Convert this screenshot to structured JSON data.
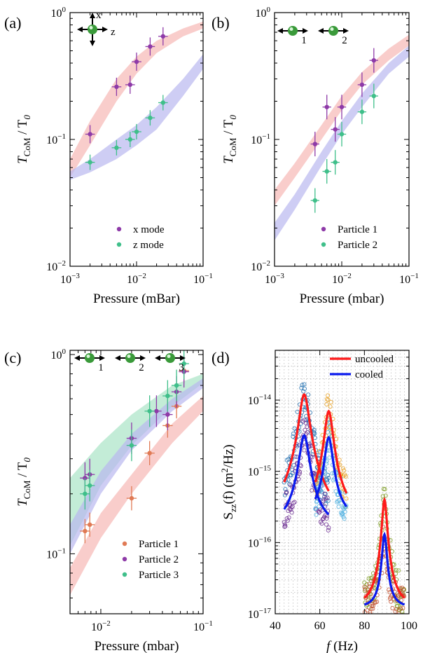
{
  "colors": {
    "purple": "#8e3aa8",
    "green": "#3fbf8a",
    "orange": "#e07a55",
    "band_red": "#f6b8b5",
    "band_blue": "#b9b8f0",
    "band_green": "#a9e4c6",
    "red_line": "#ff1a1a",
    "blue_line": "#0a1aee",
    "ball": "#3a9a3a"
  },
  "chart_data": [
    {
      "panel": "(a)",
      "type": "scatter",
      "xlabel": "Pressure (mBar)",
      "ylabel_main": "T",
      "ylabel_sub": "CoM",
      "ylabel_tail": " / T",
      "ylabel_sub2": "0",
      "xscale": "log",
      "yscale": "log",
      "xlim": [
        0.001,
        0.1
      ],
      "ylim": [
        0.01,
        1
      ],
      "xticks": [
        {
          "v": 0.001,
          "b": "10",
          "e": "−3"
        },
        {
          "v": 0.01,
          "b": "10",
          "e": "−2"
        },
        {
          "v": 0.1,
          "b": "10",
          "e": "−1"
        }
      ],
      "yticks": [
        {
          "v": 0.01,
          "b": "10",
          "e": "−2"
        },
        {
          "v": 0.1,
          "b": "10",
          "e": "−1"
        },
        {
          "v": 1,
          "b": "10",
          "e": "0"
        }
      ],
      "inset_labels": [
        "x",
        "z"
      ],
      "legend": [
        "x mode",
        "z mode"
      ],
      "series": [
        {
          "name": "x mode",
          "color": "purple",
          "x": [
            0.002,
            0.005,
            0.008,
            0.01,
            0.016,
            0.025
          ],
          "y": [
            0.11,
            0.26,
            0.27,
            0.41,
            0.54,
            0.65
          ],
          "xerr": 0.18,
          "yerr": 0.18
        },
        {
          "name": "z mode",
          "color": "green",
          "x": [
            0.002,
            0.005,
            0.008,
            0.01,
            0.016,
            0.025
          ],
          "y": [
            0.066,
            0.086,
            0.1,
            0.115,
            0.148,
            0.195
          ],
          "xerr": 0.18,
          "yerr": 0.15
        }
      ],
      "bands": [
        {
          "color": "band_red",
          "x": [
            0.001,
            0.002,
            0.005,
            0.01,
            0.02,
            0.05,
            0.1
          ],
          "lo": [
            0.05,
            0.09,
            0.2,
            0.33,
            0.48,
            0.65,
            0.75
          ],
          "hi": [
            0.07,
            0.14,
            0.3,
            0.45,
            0.6,
            0.75,
            0.85
          ]
        },
        {
          "color": "band_blue",
          "x": [
            0.001,
            0.002,
            0.005,
            0.01,
            0.02,
            0.05,
            0.1
          ],
          "lo": [
            0.048,
            0.055,
            0.07,
            0.09,
            0.12,
            0.22,
            0.36
          ],
          "hi": [
            0.056,
            0.07,
            0.1,
            0.13,
            0.18,
            0.3,
            0.47
          ]
        }
      ]
    },
    {
      "panel": "(b)",
      "type": "scatter",
      "xlabel": "Pressure (mbar)",
      "ylabel_main": "T",
      "ylabel_sub": "CoM",
      "ylabel_tail": " / T",
      "ylabel_sub2": "0",
      "xscale": "log",
      "yscale": "log",
      "xlim": [
        0.001,
        0.1
      ],
      "ylim": [
        0.01,
        1
      ],
      "xticks": [
        {
          "v": 0.001,
          "b": "10",
          "e": "−3"
        },
        {
          "v": 0.01,
          "b": "10",
          "e": "−2"
        },
        {
          "v": 0.1,
          "b": "10",
          "e": "−1"
        }
      ],
      "yticks": [
        {
          "v": 0.01,
          "b": "10",
          "e": "−2"
        },
        {
          "v": 0.1,
          "b": "10",
          "e": "−1"
        },
        {
          "v": 1,
          "b": "10",
          "e": "0"
        }
      ],
      "inset_labels": [
        "1",
        "2"
      ],
      "legend": [
        "Particle 1",
        "Particle 2"
      ],
      "series": [
        {
          "name": "Particle 1",
          "color": "purple",
          "x": [
            0.004,
            0.006,
            0.008,
            0.01,
            0.02,
            0.03
          ],
          "y": [
            0.092,
            0.18,
            0.12,
            0.18,
            0.27,
            0.42
          ],
          "xerr": 0.16,
          "yerr": 0.25
        },
        {
          "name": "Particle 2",
          "color": "green",
          "x": [
            0.004,
            0.006,
            0.008,
            0.01,
            0.02,
            0.03
          ],
          "y": [
            0.033,
            0.056,
            0.066,
            0.11,
            0.165,
            0.22
          ],
          "xerr": 0.16,
          "yerr": 0.25
        }
      ],
      "bands": [
        {
          "color": "band_red",
          "x": [
            0.001,
            0.002,
            0.005,
            0.01,
            0.02,
            0.05,
            0.1
          ],
          "lo": [
            0.03,
            0.05,
            0.1,
            0.17,
            0.27,
            0.42,
            0.55
          ],
          "hi": [
            0.04,
            0.065,
            0.13,
            0.22,
            0.34,
            0.52,
            0.67
          ]
        },
        {
          "color": "band_blue",
          "x": [
            0.001,
            0.002,
            0.005,
            0.01,
            0.02,
            0.05,
            0.1
          ],
          "lo": [
            0.016,
            0.028,
            0.062,
            0.11,
            0.18,
            0.33,
            0.45
          ],
          "hi": [
            0.022,
            0.037,
            0.08,
            0.14,
            0.23,
            0.4,
            0.55
          ]
        }
      ]
    },
    {
      "panel": "(c)",
      "type": "scatter",
      "xlabel": "Pressure (mbar)",
      "ylabel_main": "T",
      "ylabel_sub": "CoM",
      "ylabel_tail": " / T",
      "ylabel_sub2": "0",
      "xscale": "log",
      "yscale": "log",
      "xlim": [
        0.005,
        0.1
      ],
      "ylim": [
        0.05,
        1.05
      ],
      "xticks": [
        {
          "v": 0.01,
          "b": "10",
          "e": "−2"
        },
        {
          "v": 0.1,
          "b": "10",
          "e": "−1"
        }
      ],
      "yticks": [
        {
          "v": 0.1,
          "b": "10",
          "e": "−1"
        },
        {
          "v": 1,
          "b": "10",
          "e": "0"
        }
      ],
      "inset_labels": [
        "1",
        "2",
        "3"
      ],
      "legend": [
        "Particle 1",
        "Particle 2",
        "Particle 3"
      ],
      "series": [
        {
          "name": "Particle 1",
          "color": "orange",
          "x": [
            0.007,
            0.0078,
            0.02,
            0.03,
            0.045,
            0.055,
            0.065
          ],
          "y": [
            0.13,
            0.14,
            0.19,
            0.32,
            0.44,
            0.55,
            0.83
          ],
          "xerr": 0.12,
          "yerr": 0.15
        },
        {
          "name": "Particle 2",
          "color": "purple",
          "x": [
            0.007,
            0.0078,
            0.02,
            0.035,
            0.045,
            0.055,
            0.065
          ],
          "y": [
            0.24,
            0.25,
            0.38,
            0.52,
            0.5,
            0.65,
            0.82
          ],
          "xerr": 0.12,
          "yerr": 0.2
        },
        {
          "name": "Particle 3",
          "color": "green",
          "x": [
            0.007,
            0.0078,
            0.02,
            0.03,
            0.045,
            0.055,
            0.065
          ],
          "y": [
            0.2,
            0.22,
            0.35,
            0.52,
            0.62,
            0.7,
            0.9
          ],
          "xerr": 0.12,
          "yerr": 0.2
        }
      ],
      "bands": [
        {
          "color": "band_green",
          "x": [
            0.005,
            0.01,
            0.02,
            0.05,
            0.1
          ],
          "lo": [
            0.11,
            0.22,
            0.35,
            0.55,
            0.72
          ],
          "hi": [
            0.24,
            0.36,
            0.5,
            0.7,
            0.8
          ]
        },
        {
          "color": "band_blue",
          "x": [
            0.005,
            0.01,
            0.02,
            0.05,
            0.1
          ],
          "lo": [
            0.1,
            0.2,
            0.33,
            0.52,
            0.68
          ],
          "hi": [
            0.14,
            0.26,
            0.4,
            0.6,
            0.76
          ]
        },
        {
          "color": "band_red",
          "x": [
            0.005,
            0.01,
            0.02,
            0.05,
            0.1
          ],
          "lo": [
            0.062,
            0.12,
            0.2,
            0.36,
            0.52
          ],
          "hi": [
            0.085,
            0.16,
            0.25,
            0.45,
            0.62
          ]
        }
      ]
    },
    {
      "panel": "(d)",
      "type": "line",
      "xlabel_main": "f",
      "xlabel_tail": " (Hz)",
      "ylabel_main": "S",
      "ylabel_sub": "zz",
      "ylabel_tail": "(f) (m",
      "ylabel_sup": "2",
      "ylabel_end": "/Hz)",
      "xscale": "linear",
      "yscale": "log",
      "xlim": [
        40,
        100
      ],
      "ylim": [
        1e-17,
        5e-14
      ],
      "xticks": [
        {
          "v": 40,
          "t": "40"
        },
        {
          "v": 60,
          "t": "60"
        },
        {
          "v": 80,
          "t": "80"
        },
        {
          "v": 100,
          "t": "100"
        }
      ],
      "yticks": [
        {
          "v": 1e-17,
          "b": "10",
          "e": "−17"
        },
        {
          "v": 1e-16,
          "b": "10",
          "e": "−16"
        },
        {
          "v": 1e-15,
          "b": "10",
          "e": "−15"
        },
        {
          "v": 1e-14,
          "b": "10",
          "e": "−14"
        }
      ],
      "legend": [
        "uncooled",
        "cooled"
      ],
      "peaks": [
        {
          "f0": 53,
          "g": 2.0,
          "x0": 44,
          "x1": 64,
          "uncooled_peak": 1.2e-14,
          "cooled_peak": 3.2e-15,
          "bg": 1.5e-16,
          "scatter_colors": [
            "#1f6fb0",
            "#6a2a90"
          ]
        },
        {
          "f0": 64,
          "g": 1.7,
          "x0": 58,
          "x1": 72,
          "uncooled_peak": 7e-15,
          "cooled_peak": 3e-15,
          "bg": 2e-16,
          "scatter_colors": [
            "#e8a020",
            "#4fb0e0"
          ]
        },
        {
          "f0": 89,
          "g": 1.0,
          "x0": 80,
          "x1": 98,
          "uncooled_peak": 4e-16,
          "cooled_peak": 1.3e-16,
          "bg": 1.2e-17,
          "scatter_colors": [
            "#7a9a20",
            "#c05030"
          ]
        }
      ]
    }
  ]
}
